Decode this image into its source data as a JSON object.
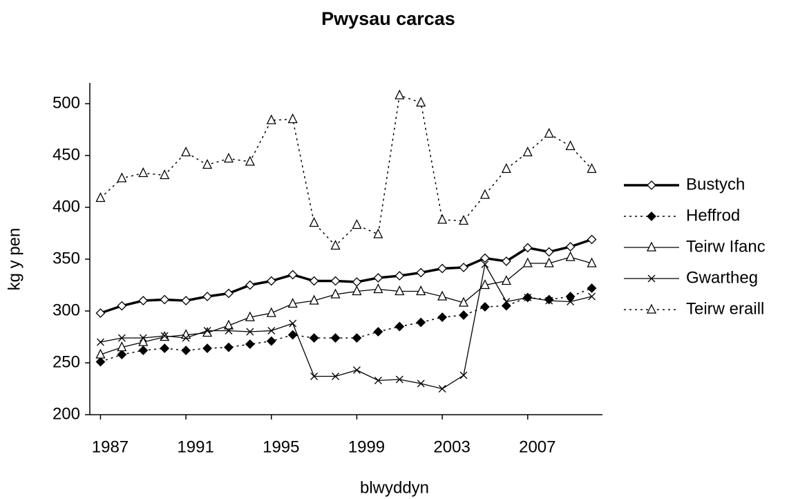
{
  "chart_data": {
    "type": "line",
    "title": "Pwysau carcas",
    "x_label": "blwyddyn",
    "y_label": "kg y pen",
    "x": [
      1987,
      1988,
      1989,
      1990,
      1991,
      1992,
      1993,
      1994,
      1995,
      1996,
      1997,
      1998,
      1999,
      2000,
      2001,
      2002,
      2003,
      2004,
      2005,
      2006,
      2007,
      2008,
      2009,
      2010
    ],
    "xlim": [
      1986.5,
      2010.5
    ],
    "xticks": [
      1987,
      1991,
      1995,
      1999,
      2003,
      2007
    ],
    "ylim": [
      200,
      520
    ],
    "yticks": [
      200,
      250,
      300,
      350,
      400,
      450,
      500
    ],
    "legend": "right",
    "series": [
      {
        "name": "Bustych",
        "color": "#000000",
        "marker": "diamond-open",
        "dash": "solid",
        "width": 3.5,
        "values": [
          298,
          305,
          310,
          311,
          310,
          314,
          317,
          325,
          329,
          335,
          329,
          329,
          328,
          332,
          334,
          337,
          341,
          342,
          351,
          348,
          361,
          357,
          362,
          369
        ]
      },
      {
        "name": "Heffrod",
        "color": "#000000",
        "marker": "diamond-filled",
        "dash": "dotted",
        "width": 1.5,
        "values": [
          251,
          258,
          262,
          264,
          262,
          264,
          265,
          268,
          271,
          277,
          274,
          274,
          274,
          280,
          285,
          289,
          294,
          296,
          304,
          305,
          313,
          311,
          314,
          322
        ]
      },
      {
        "name": "Teirw Ifanc",
        "color": "#000000",
        "marker": "triangle-open",
        "dash": "solid",
        "width": 1.3,
        "values": [
          258,
          265,
          270,
          275,
          277,
          279,
          286,
          294,
          298,
          307,
          310,
          316,
          319,
          321,
          319,
          319,
          314,
          308,
          325,
          329,
          346,
          346,
          352,
          346
        ]
      },
      {
        "name": "Gwartheg",
        "color": "#000000",
        "marker": "cross",
        "dash": "solid",
        "width": 1.3,
        "values": [
          270,
          274,
          274,
          276,
          274,
          281,
          281,
          280,
          281,
          288,
          237,
          237,
          243,
          233,
          234,
          230,
          225,
          238,
          345,
          309,
          313,
          310,
          309,
          314
        ]
      },
      {
        "name": "Teirw eraill",
        "color": "#000000",
        "marker": "triangle-open",
        "dash": "dotted",
        "width": 1.5,
        "values": [
          409,
          428,
          433,
          431,
          453,
          441,
          447,
          444,
          484,
          485,
          385,
          363,
          383,
          374,
          508,
          501,
          388,
          387,
          412,
          437,
          453,
          471,
          459,
          437
        ]
      }
    ]
  }
}
